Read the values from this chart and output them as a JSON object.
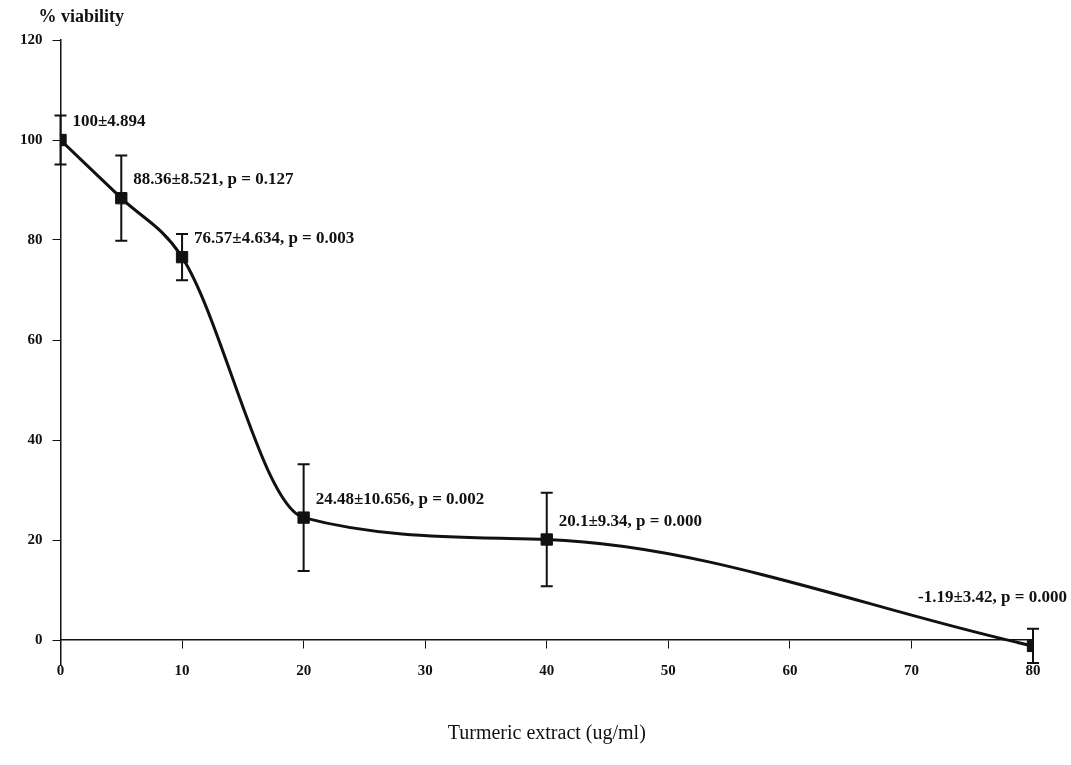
{
  "chart_data": {
    "type": "line",
    "xlabel": "Turmeric extract (ug/ml)",
    "ylabel": "% viability",
    "x": [
      0,
      5,
      10,
      20,
      40,
      80
    ],
    "series": [
      {
        "color": "#111111",
        "values": [
          100,
          88.36,
          76.57,
          24.48,
          20.1,
          -1.19
        ],
        "errors": [
          4.894,
          8.521,
          4.634,
          10.656,
          9.34,
          3.42
        ]
      }
    ],
    "xlim": [
      0,
      80
    ],
    "xticks": [
      0,
      10,
      20,
      30,
      40,
      50,
      60,
      70,
      80
    ],
    "ylim": [
      -5,
      120
    ],
    "yticks": [
      0,
      20,
      40,
      60,
      80,
      100,
      120
    ],
    "grid": false,
    "legend": false,
    "marker": "square",
    "line_style": "solid",
    "annotations": [
      {
        "text": "100±4.894",
        "x": 0,
        "y": 100
      },
      {
        "text": "88.36±8.521, p = 0.127",
        "x": 5,
        "y": 88.36
      },
      {
        "text": "76.57±4.634, p = 0.003",
        "x": 10,
        "y": 76.57
      },
      {
        "text": "24.48±10.656, p = 0.002",
        "x": 20,
        "y": 24.48
      },
      {
        "text": "20.1±9.34, p = 0.000",
        "x": 40,
        "y": 20.1
      },
      {
        "text": "-1.19±3.42, p = 0.000",
        "x": 80,
        "y": -1.19
      }
    ]
  }
}
